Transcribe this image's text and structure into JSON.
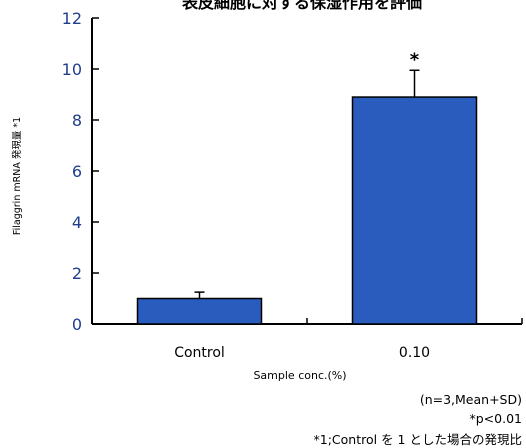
{
  "chart_data": {
    "type": "bar",
    "title": "表皮細胞に対する保湿作用を評価",
    "categories": [
      "Control",
      "0.10"
    ],
    "values": [
      1.0,
      8.9
    ],
    "error_bars_plus": [
      0.25,
      1.05
    ],
    "significance": [
      "",
      "*"
    ],
    "xlabel": "Sample conc.(%)",
    "ylabel": "Filaggrin mRNA 発現量 *1",
    "ylim": [
      0,
      12
    ],
    "yticks": [
      0,
      2,
      4,
      6,
      8,
      10,
      12
    ],
    "grid": false,
    "bar_color": "#2a5cbd",
    "notes": [
      "(n=3,Mean+SD)",
      "*p<0.01",
      "*1;Control を 1 とした場合の発現比"
    ]
  }
}
